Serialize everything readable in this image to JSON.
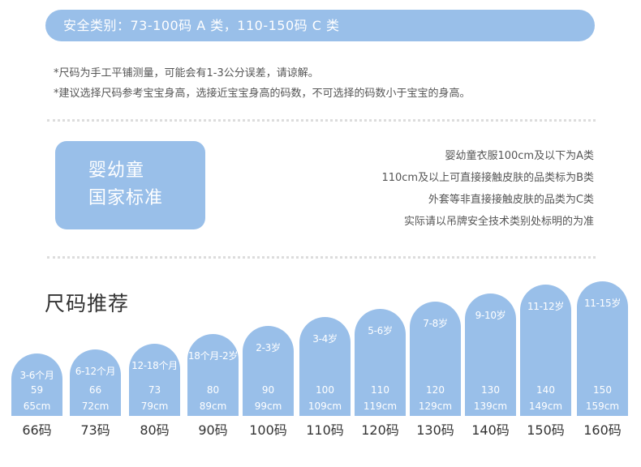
{
  "banner": {
    "text": "安全类别：73-100码 A 类，110-150码 C 类"
  },
  "notes": [
    "*尺码为手工平铺测量，可能会有1-3公分误差，请谅解。",
    "*建议选择尺码参考宝宝身高，选接近宝宝身高的码数，不可选择的码数小于宝宝的身高。"
  ],
  "standard": {
    "box_lines": [
      "婴幼童",
      "国家标准"
    ],
    "lines": [
      "婴幼童衣服100cm及以下为A类",
      "110cm及以上可直接接触皮肤的品类标为B类",
      "外套等非直接接触皮肤的品类为C类",
      "实际请以吊牌安全技术类别处标明的为准"
    ]
  },
  "section_title": "尺码推荐",
  "sizes": [
    {
      "age": "3-6个月",
      "num": "59",
      "height": "65cm",
      "size": "66码"
    },
    {
      "age": "6-12个月",
      "num": "66",
      "height": "72cm",
      "size": "73码"
    },
    {
      "age": "12-18个月",
      "num": "73",
      "height": "79cm",
      "size": "80码"
    },
    {
      "age": "18个月-2岁",
      "num": "80",
      "height": "89cm",
      "size": "90码"
    },
    {
      "age": "2-3岁",
      "num": "90",
      "height": "99cm",
      "size": "100码"
    },
    {
      "age": "3-4岁",
      "num": "100",
      "height": "109cm",
      "size": "110码"
    },
    {
      "age": "5-6岁",
      "num": "110",
      "height": "119cm",
      "size": "120码"
    },
    {
      "age": "7-8岁",
      "num": "120",
      "height": "129cm",
      "size": "130码"
    },
    {
      "age": "9-10岁",
      "num": "130",
      "height": "139cm",
      "size": "140码"
    },
    {
      "age": "11-12岁",
      "num": "140",
      "height": "149cm",
      "size": "150码"
    },
    {
      "age": "11-15岁",
      "num": "150",
      "height": "159cm",
      "size": "160码"
    }
  ],
  "colors": {
    "accent": "#99bfe9",
    "text": "#333333"
  }
}
